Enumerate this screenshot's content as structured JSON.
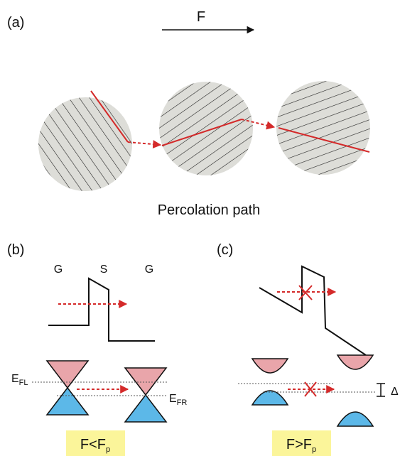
{
  "panel_a": {
    "label": "(a)",
    "field": "F",
    "caption": "Percolation path"
  },
  "panel_b": {
    "label": "(b)",
    "regions": [
      "G",
      "S",
      "G"
    ],
    "fermi_left": {
      "main": "E",
      "sub": "FL"
    },
    "fermi_right": {
      "main": "E",
      "sub": "FR"
    },
    "condition": {
      "main": "F<F",
      "sub": "p"
    }
  },
  "panel_c": {
    "label": "(c)",
    "condition": {
      "main": "F>F",
      "sub": "p"
    },
    "gap": "Δ"
  }
}
